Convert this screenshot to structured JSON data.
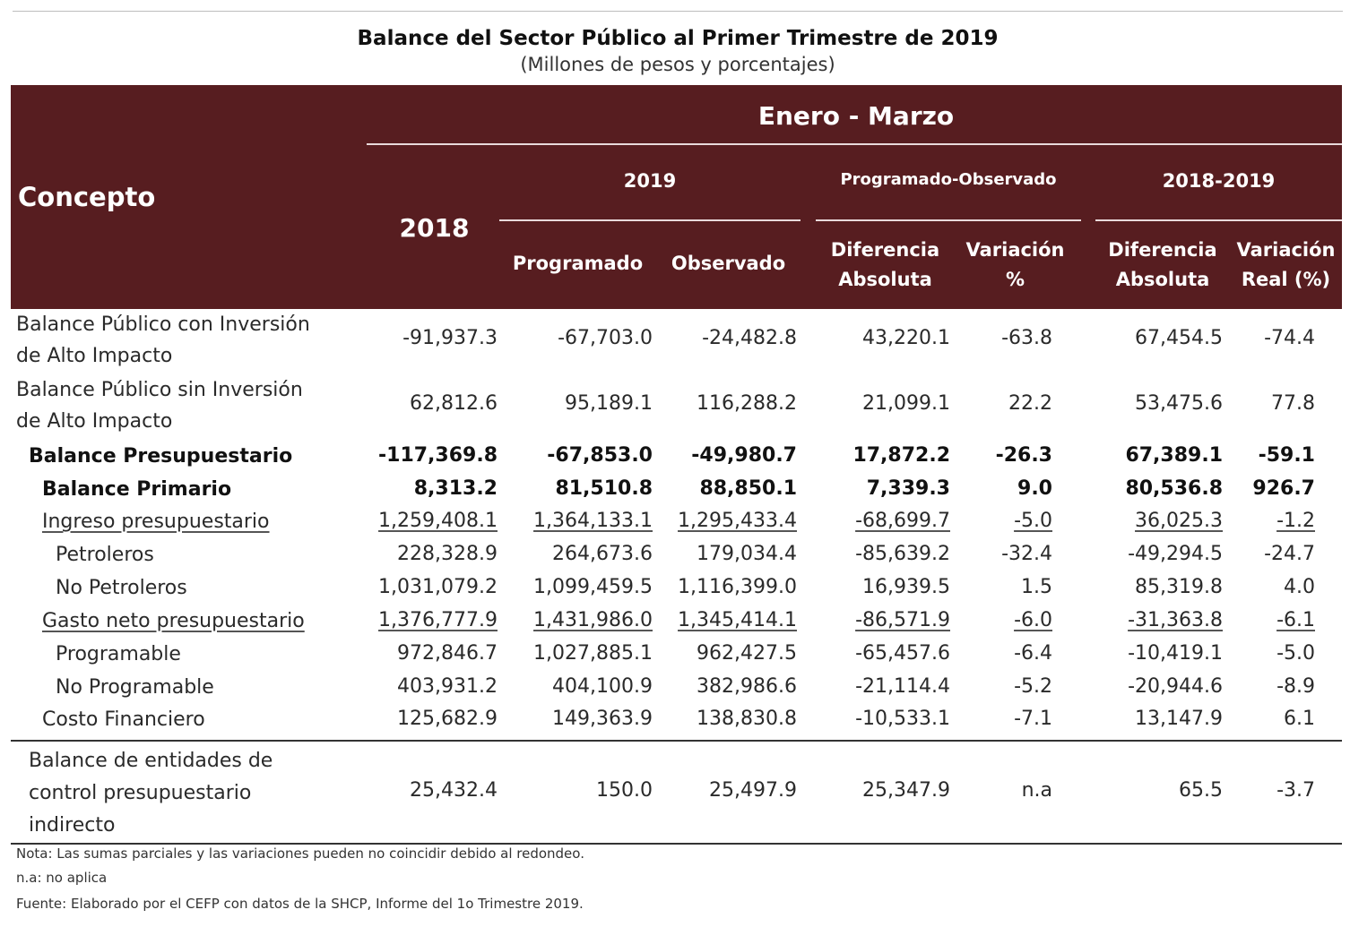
{
  "title": "Balance del Sector Público al Primer Trimestre de 2019",
  "subtitle": "(Millones de pesos y porcentajes)",
  "header": {
    "concepto": "Concepto",
    "period": "Enero - Marzo",
    "year_2018": "2018",
    "group_2019": "2019",
    "group_prog_obs": "Programado-Observado",
    "group_2018_2019": "2018-2019",
    "programado": "Programado",
    "observado": "Observado",
    "dif_abs_1_line1": "Diferencia",
    "dif_abs_1_line2": "Absoluta",
    "var_pct_line1": "Variación",
    "var_pct_line2": "%",
    "dif_abs_2_line1": "Diferencia",
    "dif_abs_2_line2": "Absoluta",
    "var_real_line1": "Variación",
    "var_real_line2": "Real (%)"
  },
  "rows": [
    {
      "concepto_l1": "Balance Público con Inversión",
      "concepto_l2": "de Alto Impacto",
      "v2018": "-91,937.3",
      "prog": "-67,703.0",
      "obs": "-24,482.8",
      "dif1": "43,220.1",
      "var1": "-63.8",
      "dif2": "67,454.5",
      "var2": "-74.4"
    },
    {
      "concepto_l1": "Balance Público sin Inversión",
      "concepto_l2": "de Alto Impacto",
      "v2018": "62,812.6",
      "prog": "95,189.1",
      "obs": "116,288.2",
      "dif1": "21,099.1",
      "var1": "22.2",
      "dif2": "53,475.6",
      "var2": "77.8"
    },
    {
      "concepto": "Balance Presupuestario",
      "v2018": "-117,369.8",
      "prog": "-67,853.0",
      "obs": "-49,980.7",
      "dif1": "17,872.2",
      "var1": "-26.3",
      "dif2": "67,389.1",
      "var2": "-59.1"
    },
    {
      "concepto": "Balance Primario",
      "v2018": "8,313.2",
      "prog": "81,510.8",
      "obs": "88,850.1",
      "dif1": "7,339.3",
      "var1": "9.0",
      "dif2": "80,536.8",
      "var2": "926.7"
    },
    {
      "concepto": "Ingreso presupuestario",
      "v2018": "1,259,408.1",
      "prog": "1,364,133.1",
      "obs": "1,295,433.4",
      "dif1": "-68,699.7",
      "var1": "-5.0",
      "dif2": "36,025.3",
      "var2": "-1.2"
    },
    {
      "concepto": "Petroleros",
      "v2018": "228,328.9",
      "prog": "264,673.6",
      "obs": "179,034.4",
      "dif1": "-85,639.2",
      "var1": "-32.4",
      "dif2": "-49,294.5",
      "var2": "-24.7"
    },
    {
      "concepto": "No Petroleros",
      "v2018": "1,031,079.2",
      "prog": "1,099,459.5",
      "obs": "1,116,399.0",
      "dif1": "16,939.5",
      "var1": "1.5",
      "dif2": "85,319.8",
      "var2": "4.0"
    },
    {
      "concepto": "Gasto neto presupuestario",
      "v2018": "1,376,777.9",
      "prog": "1,431,986.0",
      "obs": "1,345,414.1",
      "dif1": "-86,571.9",
      "var1": "-6.0",
      "dif2": "-31,363.8",
      "var2": "-6.1"
    },
    {
      "concepto": "Programable",
      "v2018": "972,846.7",
      "prog": "1,027,885.1",
      "obs": "962,427.5",
      "dif1": "-65,457.6",
      "var1": "-6.4",
      "dif2": "-10,419.1",
      "var2": "-5.0"
    },
    {
      "concepto": "No Programable",
      "v2018": "403,931.2",
      "prog": "404,100.9",
      "obs": "382,986.6",
      "dif1": "-21,114.4",
      "var1": "-5.2",
      "dif2": "-20,944.6",
      "var2": "-8.9"
    },
    {
      "concepto": "Costo Financiero",
      "v2018": "125,682.9",
      "prog": "149,363.9",
      "obs": "138,830.8",
      "dif1": "-10,533.1",
      "var1": "-7.1",
      "dif2": "13,147.9",
      "var2": "6.1"
    },
    {
      "concepto_l1": "Balance de entidades de",
      "concepto_l2": "control presupuestario",
      "concepto_l3": "indirecto",
      "v2018": "25,432.4",
      "prog": "150.0",
      "obs": "25,497.9",
      "dif1": "25,347.9",
      "var1": "n.a",
      "dif2": "65.5",
      "var2": "-3.7"
    }
  ],
  "notes": {
    "nota": "Nota: Las sumas parciales y las variaciones pueden no coincidir debido al redondeo.",
    "na": "n.a: no aplica",
    "fuente": "Fuente: Elaborado por el CEFP con datos de la SHCP, Informe del 1o Trimestre 2019."
  },
  "colors": {
    "header_bg": "#571d20",
    "header_text": "#ffffff"
  }
}
